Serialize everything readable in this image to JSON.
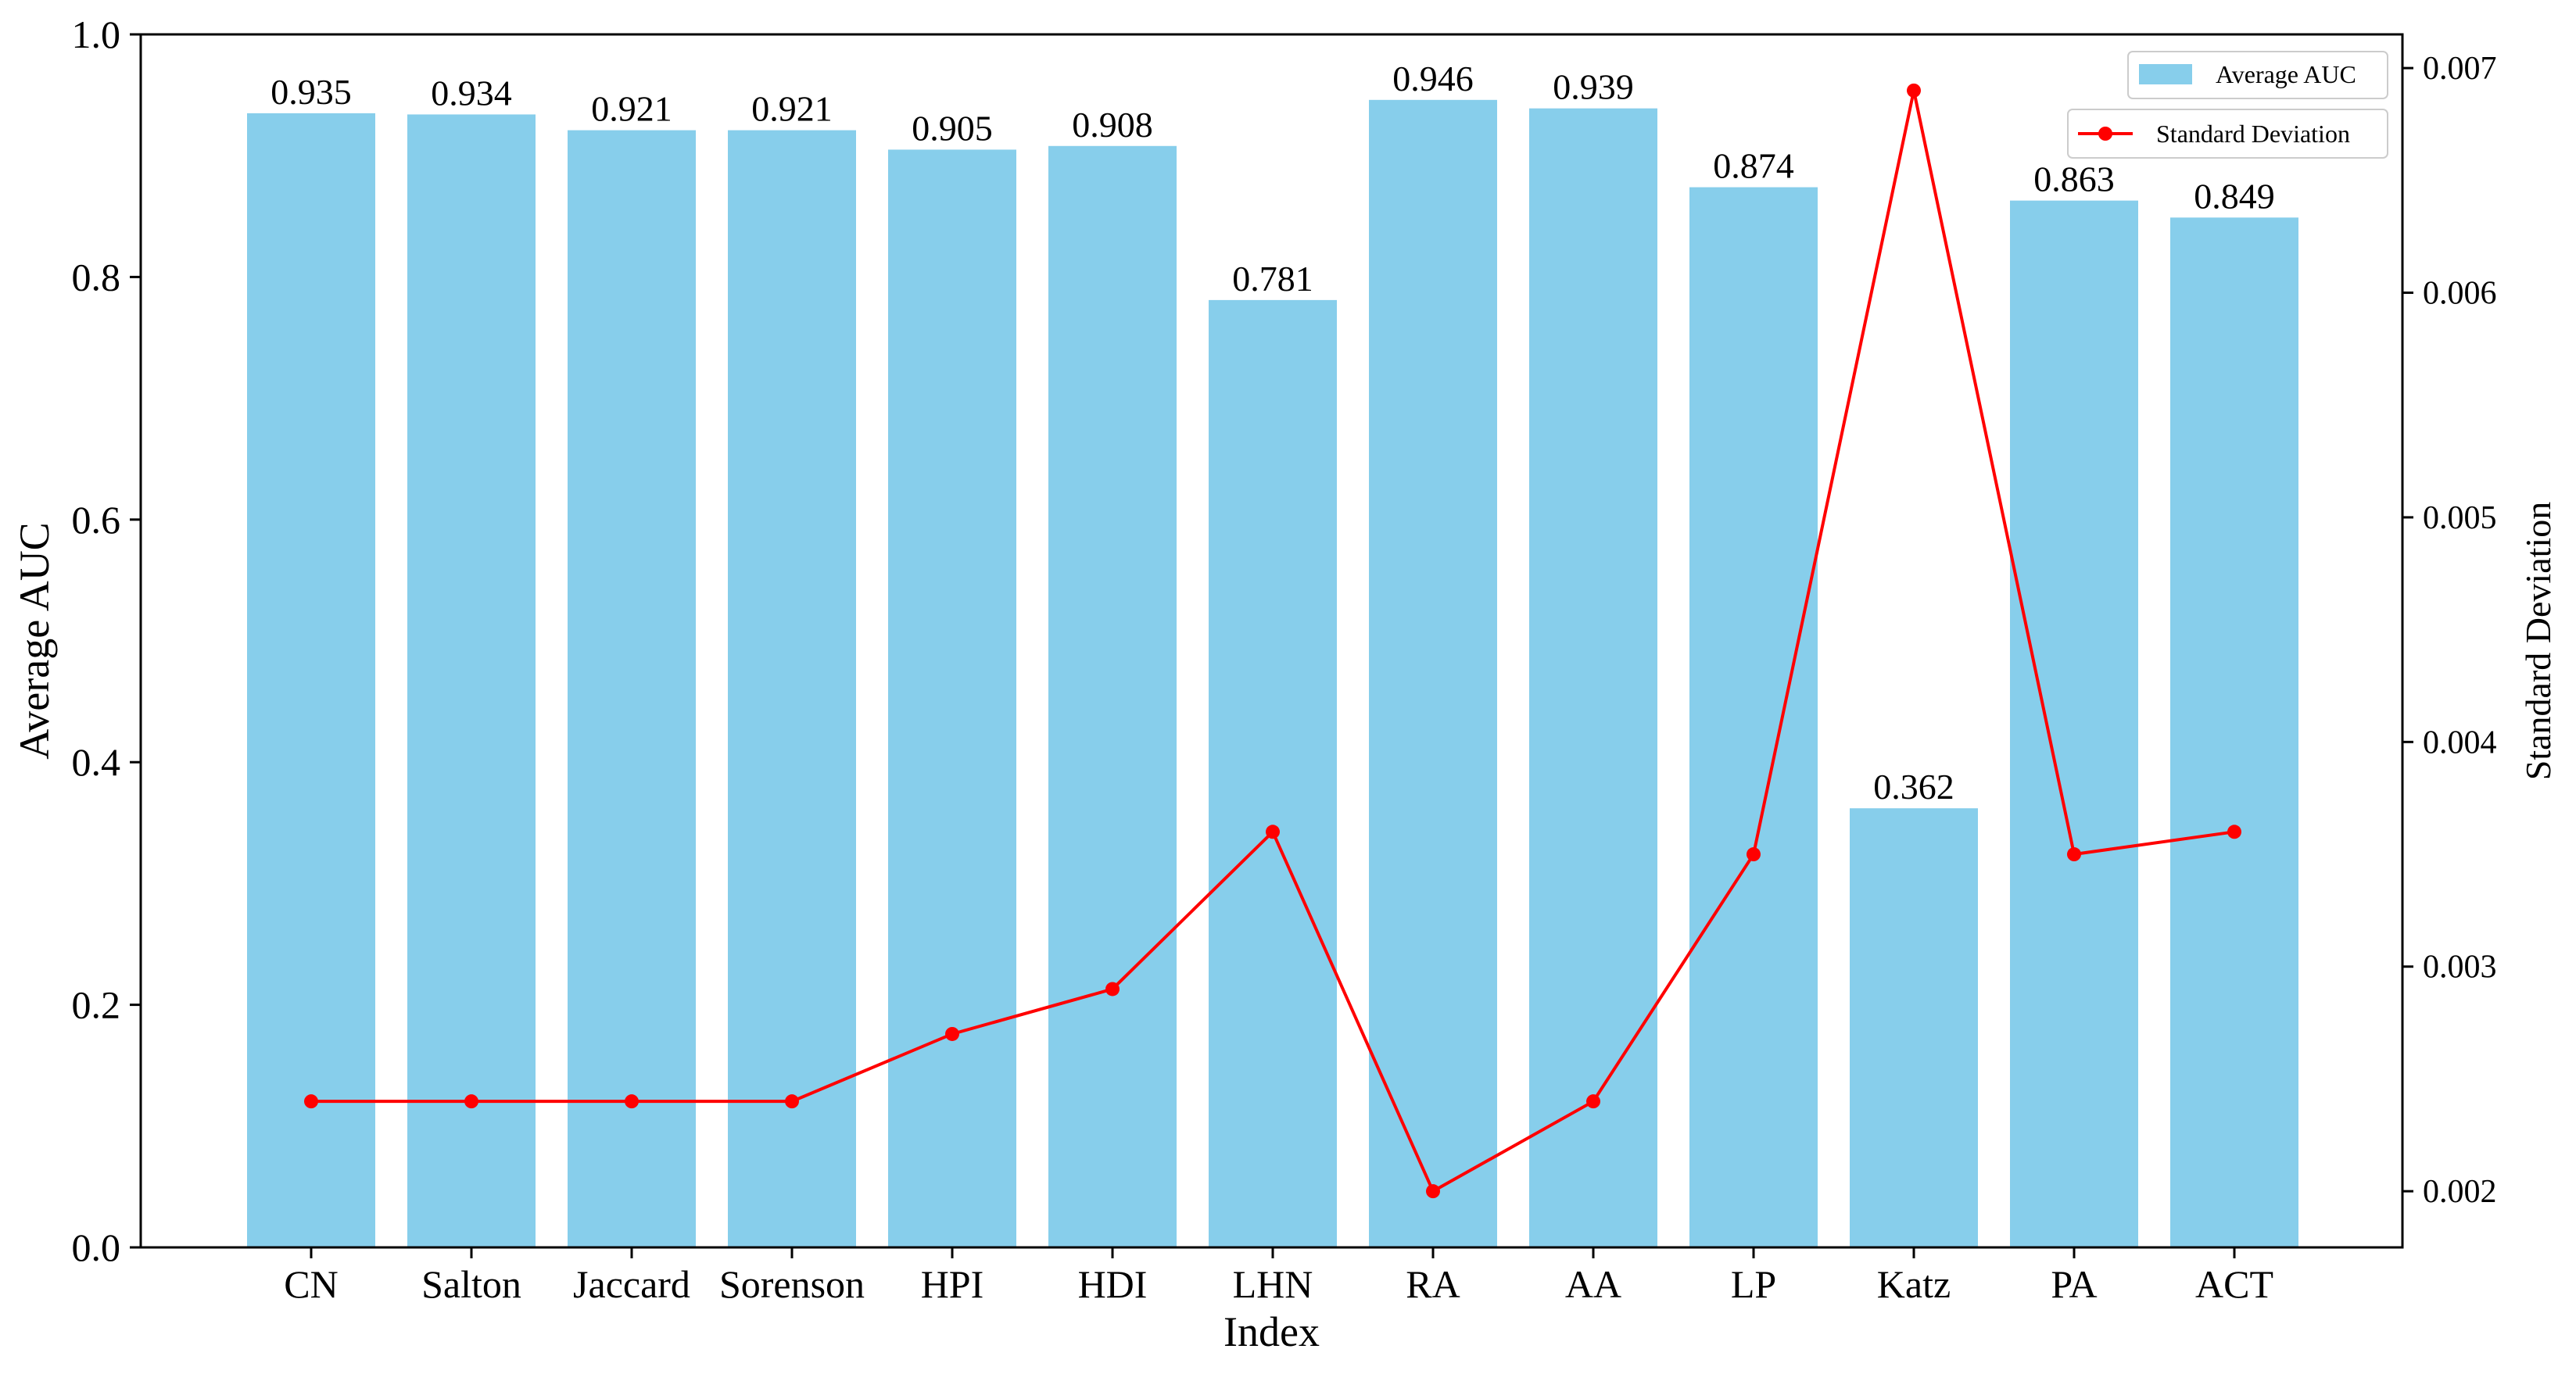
{
  "chart_data": {
    "type": "bar",
    "xlabel": "Index",
    "ylabel": "Average AUC",
    "y2label": "Standard Deviation",
    "ylim": [
      0.0,
      1.0
    ],
    "y2lim": [
      0.00175,
      0.00715
    ],
    "yticks": [
      "0.0",
      "0.2",
      "0.4",
      "0.6",
      "0.8",
      "1.0"
    ],
    "y2ticks": [
      "0.002",
      "0.003",
      "0.004",
      "0.005",
      "0.006",
      "0.007"
    ],
    "categories": [
      "CN",
      "Salton",
      "Jaccard",
      "Sorenson",
      "HPI",
      "HDI",
      "LHN",
      "RA",
      "AA",
      "LP",
      "Katz",
      "PA",
      "ACT"
    ],
    "series": [
      {
        "name": "Average AUC",
        "type": "bar",
        "axis": "left",
        "color": "#87CEEB",
        "values": [
          0.935,
          0.934,
          0.921,
          0.921,
          0.905,
          0.908,
          0.781,
          0.946,
          0.939,
          0.874,
          0.362,
          0.863,
          0.849
        ],
        "labels": [
          "0.935",
          "0.934",
          "0.921",
          "0.921",
          "0.905",
          "0.908",
          "0.781",
          "0.946",
          "0.939",
          "0.874",
          "0.362",
          "0.863",
          "0.849"
        ]
      },
      {
        "name": "Standard Deviation",
        "type": "line",
        "axis": "right",
        "color": "#ff0000",
        "values": [
          0.0024,
          0.0024,
          0.0024,
          0.0024,
          0.0027,
          0.0029,
          0.0036,
          0.002,
          0.0024,
          0.0035,
          0.0069,
          0.0035,
          0.0036
        ]
      }
    ],
    "legend": "top-right",
    "grid": false
  }
}
